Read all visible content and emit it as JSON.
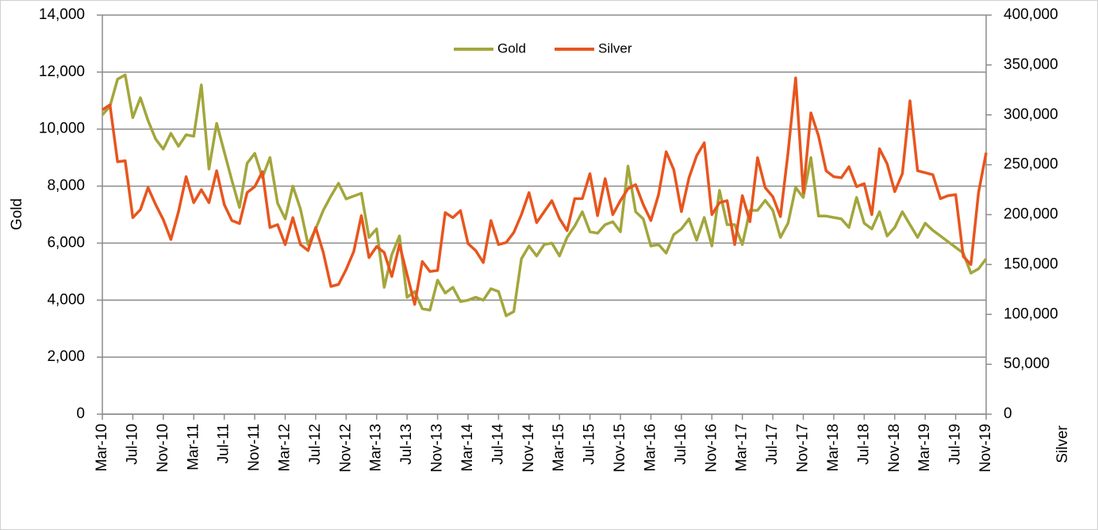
{
  "chart_data": {
    "type": "line",
    "y_label": "Gold",
    "y2_label": "Silver",
    "categories": [
      "Mar-10",
      null,
      null,
      null,
      "Jul-10",
      null,
      null,
      null,
      "Nov-10",
      null,
      null,
      null,
      "Mar-11",
      null,
      null,
      null,
      "Jul-11",
      null,
      null,
      null,
      "Nov-11",
      null,
      null,
      null,
      "Mar-12",
      null,
      null,
      null,
      "Jul-12",
      null,
      null,
      null,
      "Nov-12",
      null,
      null,
      null,
      "Mar-13",
      null,
      null,
      null,
      "Jul-13",
      null,
      null,
      null,
      "Nov-13",
      null,
      null,
      null,
      "Mar-14",
      null,
      null,
      null,
      "Jul-14",
      null,
      null,
      null,
      "Nov-14",
      null,
      null,
      null,
      "Mar-15",
      null,
      null,
      null,
      "Jul-15",
      null,
      null,
      null,
      "Nov-15",
      null,
      null,
      null,
      "Mar-16",
      null,
      null,
      null,
      "Jul-16",
      null,
      null,
      null,
      "Nov-16",
      null,
      null,
      null,
      "Mar-17",
      null,
      null,
      null,
      "Jul-17",
      null,
      null,
      null,
      "Nov-17",
      null,
      null,
      null,
      "Mar-18",
      null,
      null,
      null,
      "Jul-18",
      null,
      null,
      null,
      "Nov-18",
      null,
      null,
      null,
      "Mar-19",
      null,
      null,
      null,
      "Jul-19",
      null,
      null,
      null,
      "Nov-19"
    ],
    "series": [
      {
        "name": "Gold",
        "color": "#a3a63c",
        "axis": "y",
        "values": [
          10500,
          10800,
          11750,
          11900,
          10400,
          11100,
          10300,
          9650,
          9300,
          9850,
          9400,
          9800,
          9750,
          11550,
          8600,
          10200,
          9200,
          8200,
          7250,
          8800,
          9150,
          8300,
          9000,
          7400,
          6850,
          8000,
          7200,
          5950,
          6500,
          7150,
          7650,
          8100,
          7550,
          7650,
          7750,
          6200,
          6500,
          4450,
          5600,
          6250,
          4100,
          4300,
          3700,
          3650,
          4700,
          4250,
          4450,
          3950,
          4000,
          4100,
          4000,
          4400,
          4300,
          3450,
          3600,
          5450,
          5900,
          5550,
          5950,
          6000,
          5550,
          6200,
          6600,
          7100,
          6400,
          6350,
          6650,
          6750,
          6400,
          8700,
          7100,
          6850,
          5900,
          5950,
          5650,
          6300,
          6500,
          6850,
          6100,
          6900,
          5900,
          7850,
          6650,
          6650,
          5950,
          7150,
          7150,
          7500,
          7150,
          6200,
          6700,
          7950,
          7600,
          9000,
          6950,
          6950,
          6900,
          6850,
          6550,
          7600,
          6700,
          6500,
          7100,
          6250,
          6550,
          7100,
          6650,
          6200,
          6700,
          6450,
          6250,
          6050,
          5850,
          5650,
          4950,
          5100,
          5450
        ]
      },
      {
        "name": "Silver",
        "color": "#e8551e",
        "axis": "y2",
        "values": [
          305000,
          310000,
          253000,
          254000,
          197000,
          205000,
          227000,
          210000,
          195000,
          175000,
          203000,
          238000,
          212000,
          225000,
          212000,
          244000,
          210000,
          194000,
          191000,
          222000,
          228000,
          243000,
          187000,
          190000,
          170000,
          197000,
          170000,
          164000,
          187000,
          162000,
          128000,
          130000,
          145000,
          163000,
          199000,
          157000,
          168000,
          162000,
          138000,
          170000,
          140000,
          110000,
          153000,
          143000,
          144000,
          202000,
          197000,
          204000,
          171000,
          164000,
          152000,
          194000,
          170000,
          172000,
          182000,
          200000,
          222000,
          192000,
          203000,
          214000,
          196000,
          184000,
          216000,
          216000,
          241000,
          199000,
          236000,
          200000,
          214000,
          226000,
          230000,
          210000,
          194000,
          220000,
          263000,
          245000,
          203000,
          237000,
          259000,
          272000,
          200000,
          212000,
          214000,
          170000,
          219000,
          193000,
          257000,
          227000,
          218000,
          198000,
          262000,
          337000,
          222000,
          302000,
          279000,
          244000,
          238000,
          237000,
          248000,
          228000,
          231000,
          200000,
          266000,
          251000,
          223000,
          241000,
          314000,
          244000,
          242000,
          240000,
          216000,
          219000,
          220000,
          158000,
          150000,
          222000,
          262000
        ]
      }
    ],
    "ylim": [
      0,
      14000
    ],
    "yticks": [
      0,
      {
        "value": 2000,
        "label": "2,000"
      },
      {
        "value": 4000,
        "label": "4,000"
      },
      {
        "value": 6000,
        "label": "6,000"
      },
      {
        "value": 8000,
        "label": "8,000"
      },
      {
        "value": 10000,
        "label": "10,000"
      },
      {
        "value": 12000,
        "label": "12,000"
      },
      {
        "value": 14000,
        "label": "14,000"
      }
    ],
    "y2lim": [
      0,
      400000
    ],
    "y2ticks": [
      0,
      {
        "value": 50000,
        "label": "50,000"
      },
      {
        "value": 100000,
        "label": "100,000"
      },
      {
        "value": 150000,
        "label": "150,000"
      },
      {
        "value": 200000,
        "label": "200,000"
      },
      {
        "value": 250000,
        "label": "250,000"
      },
      {
        "value": 300000,
        "label": "300,000"
      },
      {
        "value": 350000,
        "label": "350,000"
      },
      {
        "value": 400000,
        "label": "400,000"
      }
    ],
    "grid": true,
    "legend": "top"
  }
}
